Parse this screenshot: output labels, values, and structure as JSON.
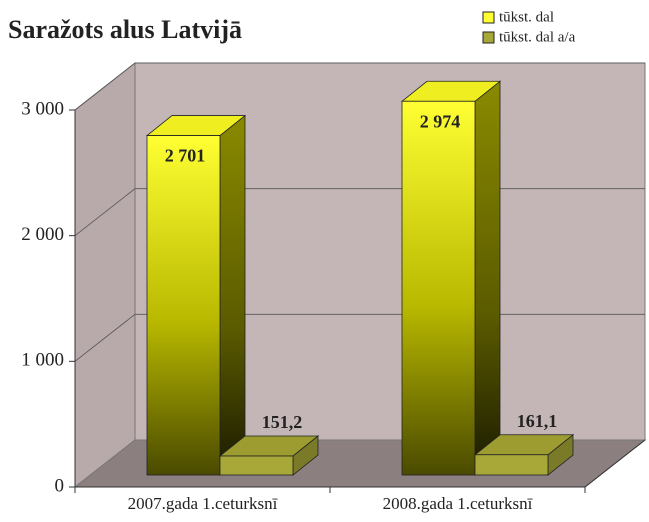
{
  "chart_data": {
    "type": "bar3d",
    "title": "Saražots alus Latvijā",
    "categories": [
      "2007.gada 1.ceturksnī",
      "2008.gada 1.ceturksnī"
    ],
    "series": [
      {
        "name": "tūkst. dal",
        "color": "#ffff33",
        "values": [
          2701,
          2974
        ],
        "value_labels": [
          "2 701",
          "2 974"
        ]
      },
      {
        "name": "tūkst. dal a/a",
        "color": "#a8a838",
        "values": [
          151.2,
          161.1
        ],
        "value_labels": [
          "151,2",
          "161,1"
        ]
      }
    ],
    "ylim": [
      0,
      3000
    ],
    "yticks": [
      0,
      {
        "value": 1000,
        "label": "1 000"
      },
      {
        "value": 2000,
        "label": "2 000"
      },
      {
        "value": 3000,
        "label": "3 000"
      }
    ],
    "grid": true,
    "legend": "top-right"
  }
}
